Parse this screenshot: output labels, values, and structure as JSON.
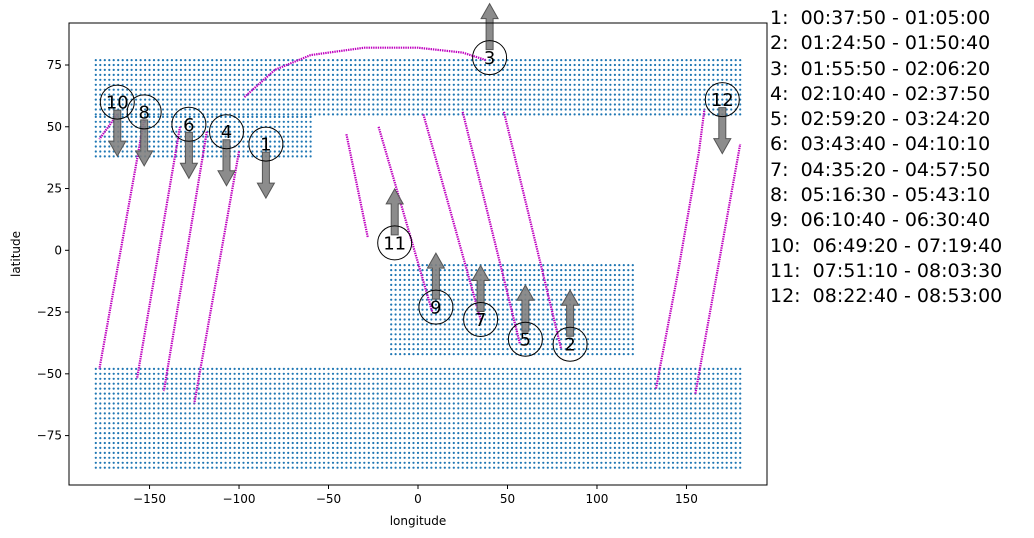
{
  "chart_data": {
    "type": "scatter",
    "xlabel": "longitude",
    "ylabel": "latitude",
    "xlim": [
      -195,
      195
    ],
    "ylim": [
      -95,
      92
    ],
    "xticks": [
      -150,
      -100,
      -50,
      0,
      50,
      100,
      150
    ],
    "yticks": [
      -75,
      -50,
      -25,
      0,
      25,
      50,
      75
    ],
    "grid": false,
    "colors": {
      "coverage": "#1f77b4",
      "track": "#bf00bf",
      "arrow": "#7f7f7f"
    },
    "coverage_regions": [
      {
        "lat_range": [
          55,
          77
        ],
        "lon_range": [
          -180,
          180
        ]
      },
      {
        "lat_range": [
          38,
          55
        ],
        "lon_range": [
          -180,
          -60
        ]
      },
      {
        "lat_range": [
          -42,
          -5
        ],
        "lon_range": [
          -15,
          120
        ]
      },
      {
        "lat_range": [
          -88,
          -48
        ],
        "lon_range": [
          -180,
          180
        ]
      }
    ],
    "tracks": [
      {
        "id": "1",
        "x": [
          -100,
          -125
        ],
        "y": [
          40,
          -62
        ]
      },
      {
        "id": "2",
        "x": [
          48,
          80
        ],
        "y": [
          56,
          -40
        ]
      },
      {
        "id": "3",
        "x": [
          -97,
          -80,
          -60,
          -30,
          0,
          25,
          38
        ],
        "y": [
          62,
          73,
          79,
          82,
          82,
          80,
          77
        ]
      },
      {
        "id": "4",
        "x": [
          -118,
          -142
        ],
        "y": [
          48,
          -57
        ]
      },
      {
        "id": "5",
        "x": [
          25,
          57
        ],
        "y": [
          56,
          -38
        ]
      },
      {
        "id": "6",
        "x": [
          -133,
          -157
        ],
        "y": [
          50,
          -52
        ]
      },
      {
        "id": "7",
        "x": [
          3,
          35
        ],
        "y": [
          55,
          -28
        ]
      },
      {
        "id": "8",
        "x": [
          -153,
          -178
        ],
        "y": [
          53,
          -48
        ]
      },
      {
        "id": "9",
        "x": [
          -22,
          8
        ],
        "y": [
          50,
          -25
        ]
      },
      {
        "id": "10",
        "x": [
          -168,
          -178
        ],
        "y": [
          55,
          45
        ]
      },
      {
        "id": "11",
        "x": [
          -40,
          -28
        ],
        "y": [
          47,
          5
        ]
      },
      {
        "id": "12",
        "x": [
          133,
          145,
          157,
          160
        ],
        "y": [
          -56,
          -10,
          40,
          57
        ]
      },
      {
        "id": "12b",
        "x": [
          155,
          180
        ],
        "y": [
          -58,
          43
        ]
      }
    ],
    "markers": [
      {
        "label": "1",
        "x": -85,
        "y": 43,
        "direction": "down"
      },
      {
        "label": "2",
        "x": 85,
        "y": -38,
        "direction": "up"
      },
      {
        "label": "3",
        "x": 40,
        "y": 78,
        "direction": "up"
      },
      {
        "label": "4",
        "x": -107,
        "y": 48,
        "direction": "down"
      },
      {
        "label": "5",
        "x": 60,
        "y": -36,
        "direction": "up"
      },
      {
        "label": "6",
        "x": -128,
        "y": 51,
        "direction": "down"
      },
      {
        "label": "7",
        "x": 35,
        "y": -28,
        "direction": "up"
      },
      {
        "label": "8",
        "x": -153,
        "y": 56,
        "direction": "down"
      },
      {
        "label": "9",
        "x": 10,
        "y": -23,
        "direction": "up"
      },
      {
        "label": "10",
        "x": -168,
        "y": 60,
        "direction": "down"
      },
      {
        "label": "11",
        "x": -13,
        "y": 3,
        "direction": "up"
      },
      {
        "label": "12",
        "x": 170,
        "y": 61,
        "direction": "down"
      }
    ],
    "legend": [
      "1:  00:37:50 - 01:05:00",
      "2:  01:24:50 - 01:50:40",
      "3:  01:55:50 - 02:06:20",
      "4:  02:10:40 - 02:37:50",
      "5:  02:59:20 - 03:24:20",
      "6:  03:43:40 - 04:10:10",
      "7:  04:35:20 - 04:57:50",
      "8:  05:16:30 - 05:43:10",
      "9:  06:10:40 - 06:30:40",
      "10:  06:49:20 - 07:19:40",
      "11:  07:51:10 - 08:03:30",
      "12:  08:22:40 - 08:53:00"
    ]
  }
}
